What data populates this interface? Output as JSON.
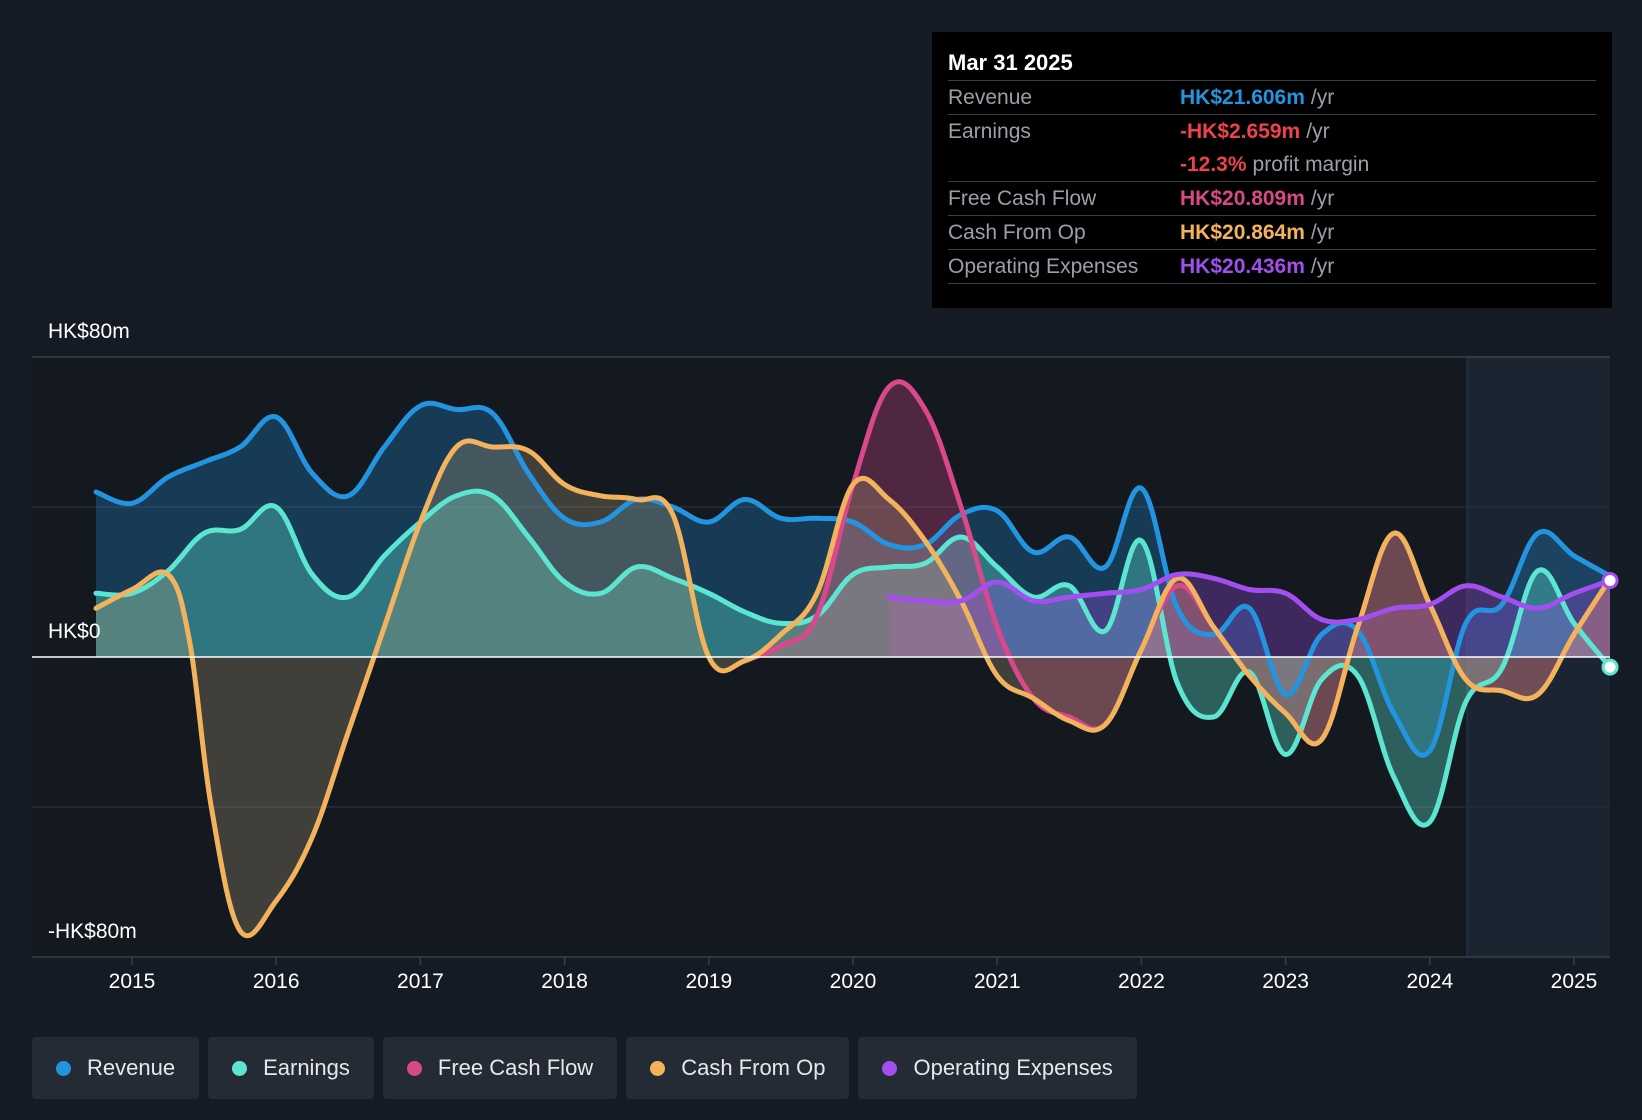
{
  "tooltip": {
    "date": "Mar 31 2025",
    "rows": [
      {
        "label": "Revenue",
        "value": "HK$21.606m",
        "unit": "/yr",
        "color": "#2394df"
      },
      {
        "label": "Earnings",
        "value": "-HK$2.659m",
        "unit": "/yr",
        "color": "#f0424e"
      },
      {
        "label": "",
        "value": "-12.3%",
        "unit": "profit margin",
        "color": "#f0424e"
      },
      {
        "label": "Free Cash Flow",
        "value": "HK$20.809m",
        "unit": "/yr",
        "color": "#d9488a"
      },
      {
        "label": "Cash From Op",
        "value": "HK$20.864m",
        "unit": "/yr",
        "color": "#f2b35c"
      },
      {
        "label": "Operating Expenses",
        "value": "HK$20.436m",
        "unit": "/yr",
        "color": "#a34ff0"
      }
    ]
  },
  "legend": [
    {
      "label": "Revenue",
      "color": "#2394df"
    },
    {
      "label": "Earnings",
      "color": "#5ce6d2"
    },
    {
      "label": "Free Cash Flow",
      "color": "#d9488a"
    },
    {
      "label": "Cash From Op",
      "color": "#f2b35c"
    },
    {
      "label": "Operating Expenses",
      "color": "#a34ff0"
    }
  ],
  "chart_data": {
    "type": "area",
    "y_tick_labels": [
      "HK$80m",
      "HK$0",
      "-HK$80m"
    ],
    "ylim": [
      -80,
      80
    ],
    "xlim": [
      2014.0,
      2025.3
    ],
    "x_ticks": [
      "2015",
      "2016",
      "2017",
      "2018",
      "2019",
      "2020",
      "2021",
      "2022",
      "2023",
      "2024",
      "2025"
    ],
    "units": "HK$m",
    "series": [
      {
        "name": "Revenue",
        "color": "#2394df",
        "x": [
          2014.75,
          2015.0,
          2015.25,
          2015.5,
          2015.75,
          2016.0,
          2016.25,
          2016.5,
          2016.75,
          2017.0,
          2017.25,
          2017.5,
          2017.75,
          2018.0,
          2018.25,
          2018.5,
          2018.75,
          2019.0,
          2019.25,
          2019.5,
          2019.75,
          2020.0,
          2020.25,
          2020.5,
          2020.75,
          2021.0,
          2021.25,
          2021.5,
          2021.75,
          2022.0,
          2022.25,
          2022.5,
          2022.75,
          2023.0,
          2023.25,
          2023.5,
          2023.75,
          2024.0,
          2024.25,
          2024.5,
          2024.75,
          2025.0,
          2025.25
        ],
        "y": [
          44,
          41,
          48,
          52,
          56,
          64,
          49,
          43,
          56,
          67,
          66,
          65,
          49,
          37,
          36,
          42,
          40,
          36,
          42,
          37,
          37,
          36,
          30,
          30,
          38,
          39,
          28,
          32,
          24,
          45,
          13,
          6,
          13,
          -10,
          6,
          7,
          -15,
          -25,
          9,
          14,
          33,
          27,
          21.6
        ]
      },
      {
        "name": "Earnings",
        "color": "#5ce6d2",
        "x": [
          2014.75,
          2015.0,
          2015.25,
          2015.5,
          2015.75,
          2016.0,
          2016.25,
          2016.5,
          2016.75,
          2017.0,
          2017.25,
          2017.5,
          2017.75,
          2018.0,
          2018.25,
          2018.5,
          2018.75,
          2019.0,
          2019.25,
          2019.5,
          2019.75,
          2020.0,
          2020.25,
          2020.5,
          2020.75,
          2021.0,
          2021.25,
          2021.5,
          2021.75,
          2022.0,
          2022.25,
          2022.5,
          2022.75,
          2023.0,
          2023.25,
          2023.5,
          2023.75,
          2024.0,
          2024.25,
          2024.5,
          2024.75,
          2025.0,
          2025.25
        ],
        "y": [
          17,
          17,
          23,
          33,
          34,
          40,
          22,
          16,
          27,
          36,
          43,
          43,
          32,
          20,
          17,
          24,
          21,
          17,
          12,
          9,
          11,
          22,
          24,
          25,
          32,
          24,
          16,
          19,
          7,
          31,
          -7,
          -16,
          -4,
          -26,
          -6,
          -5,
          -32,
          -44,
          -12,
          -3,
          23,
          9,
          -2.7
        ]
      },
      {
        "name": "Free Cash Flow",
        "color": "#d9488a",
        "x": [
          2019.25,
          2019.5,
          2019.75,
          2020.0,
          2020.25,
          2020.5,
          2020.75,
          2021.0,
          2021.25,
          2021.5,
          2021.75,
          2022.0,
          2022.25,
          2022.5,
          2022.75,
          2023.0,
          2023.25,
          2023.5,
          2023.75,
          2024.0,
          2024.25,
          2024.5,
          2024.75,
          2025.0,
          2025.25
        ],
        "y": [
          -1,
          3,
          11,
          46,
          72,
          66,
          40,
          8,
          -11,
          -16,
          -18,
          2,
          19,
          8,
          -5,
          -15,
          -22,
          8,
          33,
          14,
          -6,
          -9,
          -10,
          6,
          20.8
        ]
      },
      {
        "name": "Cash From Op",
        "color": "#f2b35c",
        "x": [
          2014.75,
          2015.0,
          2015.25,
          2015.4,
          2015.55,
          2015.75,
          2016.0,
          2016.25,
          2016.5,
          2016.75,
          2017.0,
          2017.25,
          2017.5,
          2017.75,
          2018.0,
          2018.25,
          2018.5,
          2018.75,
          2019.0,
          2019.25,
          2019.5,
          2019.75,
          2020.0,
          2020.25,
          2020.5,
          2020.75,
          2021.0,
          2021.25,
          2021.5,
          2021.75,
          2022.0,
          2022.25,
          2022.5,
          2022.75,
          2023.0,
          2023.25,
          2023.5,
          2023.75,
          2024.0,
          2024.25,
          2024.5,
          2024.75,
          2025.0,
          2025.25
        ],
        "y": [
          13,
          18,
          22,
          4,
          -40,
          -73,
          -65,
          -48,
          -20,
          8,
          36,
          56,
          56,
          55,
          46,
          43,
          42,
          38,
          0,
          -1,
          6,
          17,
          46,
          42,
          31,
          15,
          -5,
          -11,
          -17,
          -18,
          2,
          21,
          8,
          -5,
          -15,
          -22,
          8,
          33,
          14,
          -6,
          -9,
          -10,
          6,
          20.9
        ]
      },
      {
        "name": "Operating Expenses",
        "color": "#a34ff0",
        "x": [
          2020.25,
          2020.5,
          2020.75,
          2021.0,
          2021.25,
          2021.5,
          2021.75,
          2022.0,
          2022.25,
          2022.5,
          2022.75,
          2023.0,
          2023.25,
          2023.5,
          2023.75,
          2024.0,
          2024.25,
          2024.5,
          2024.75,
          2025.0,
          2025.25
        ],
        "y": [
          16,
          15,
          15,
          20,
          15,
          16,
          17,
          18,
          22,
          21,
          18,
          17,
          10,
          10,
          13,
          14,
          19,
          16,
          13,
          17,
          20.4
        ]
      }
    ]
  }
}
